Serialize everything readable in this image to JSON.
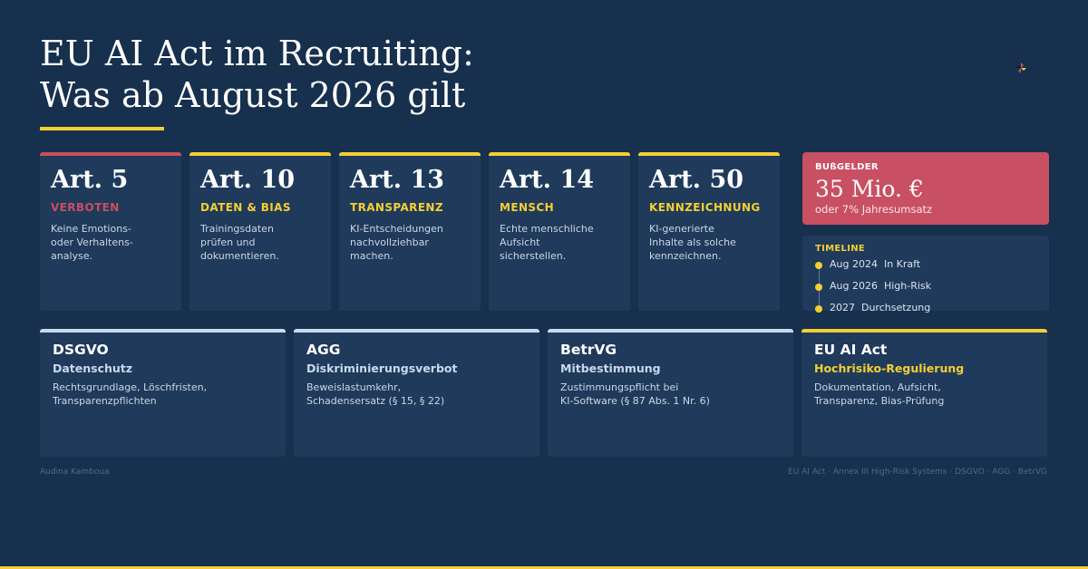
{
  "title": {
    "line1": "EU AI Act im Recruiting:",
    "line2": "Was ab August 2026 gilt"
  },
  "colors": {
    "background": "#16304d",
    "card": "#1f3a5b",
    "accent_yellow": "#f5cf31",
    "accent_red": "#c94f62",
    "accent_light": "#c9d9ee"
  },
  "articles": [
    {
      "number": "Art. 5",
      "tag": "VERBOTEN",
      "desc": "Keine Emotions-\noder Verhaltens-\nanalyse.",
      "color": "#c94f62"
    },
    {
      "number": "Art. 10",
      "tag": "DATEN & BIAS",
      "desc": "Trainingsdaten\nprüfen und\ndokumentieren.",
      "color": "#f5cf31"
    },
    {
      "number": "Art. 13",
      "tag": "TRANSPARENZ",
      "desc": "KI-Entscheidungen\nnachvollziehbar\nmachen.",
      "color": "#f5cf31"
    },
    {
      "number": "Art. 14",
      "tag": "MENSCH",
      "desc": "Echte menschliche\nAufsicht\nsicherstellen.",
      "color": "#f5cf31"
    },
    {
      "number": "Art. 50",
      "tag": "KENNZEICHNUNG",
      "desc": "KI-generierte\nInhalte als solche\nkennzeichnen.",
      "color": "#f5cf31"
    }
  ],
  "fines": {
    "label": "BUßGELDER",
    "amount": "35 Mio. €",
    "sub": "oder 7% Jahresumsatz"
  },
  "timeline": {
    "label": "TIMELINE",
    "items": [
      "Aug 2024  In Kraft",
      "Aug 2026  High-Risk",
      "2027  Durchsetzung"
    ]
  },
  "laws": [
    {
      "name": "DSGVO",
      "sub": "Datenschutz",
      "desc": "Rechtsgrundlage, Löschfristen,\nTransparenzpflichten",
      "bar_color": "#c9d9ee",
      "sub_color": "#c9d9ee"
    },
    {
      "name": "AGG",
      "sub": "Diskriminierungsverbot",
      "desc": "Beweislastumkehr,\nSchadensersatz (§ 15, § 22)",
      "bar_color": "#c9d9ee",
      "sub_color": "#c9d9ee"
    },
    {
      "name": "BetrVG",
      "sub": "Mitbestimmung",
      "desc": "Zustimmungspflicht bei\nKI-Software (§ 87 Abs. 1 Nr. 6)",
      "bar_color": "#c9d9ee",
      "sub_color": "#c9d9ee"
    },
    {
      "name": "EU AI Act",
      "sub": "Hochrisiko-Regulierung",
      "desc": "Dokumentation, Aufsicht,\nTransparenz, Bias-Prüfung",
      "bar_color": "#f5cf31",
      "sub_color": "#f5cf31"
    }
  ],
  "footer": {
    "author": "Audina Kamboua",
    "sources": "EU AI Act · Annex III High-Risk Systems · DSGVO · AGG · BetrVG"
  },
  "icons": {
    "logo": "pinwheel-logo-icon"
  }
}
